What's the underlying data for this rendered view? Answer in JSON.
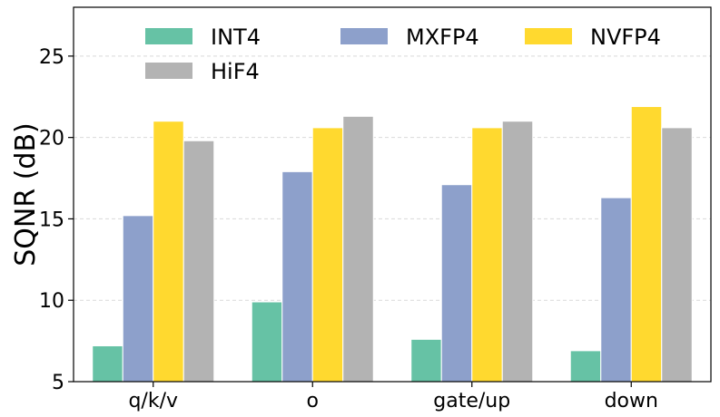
{
  "chart_data": {
    "type": "bar",
    "title": "",
    "xlabel": "",
    "ylabel": "SQNR (dB)",
    "ylim": [
      5,
      28
    ],
    "yticks": [
      5,
      10,
      15,
      20,
      25
    ],
    "grid": true,
    "legend_position": "top",
    "categories": [
      "q/k/v",
      "o",
      "gate/up",
      "down"
    ],
    "series": [
      {
        "name": "INT4",
        "color": "#66c2a5",
        "values": [
          7.2,
          9.9,
          7.6,
          6.9
        ]
      },
      {
        "name": "MXFP4",
        "color": "#8da0cb",
        "values": [
          15.2,
          17.9,
          17.1,
          16.3
        ]
      },
      {
        "name": "NVFP4",
        "color": "#ffd92f",
        "values": [
          21.0,
          20.6,
          20.6,
          21.9
        ]
      },
      {
        "name": "HiF4",
        "color": "#b3b3b3",
        "values": [
          19.8,
          21.3,
          21.0,
          20.6
        ]
      }
    ]
  }
}
